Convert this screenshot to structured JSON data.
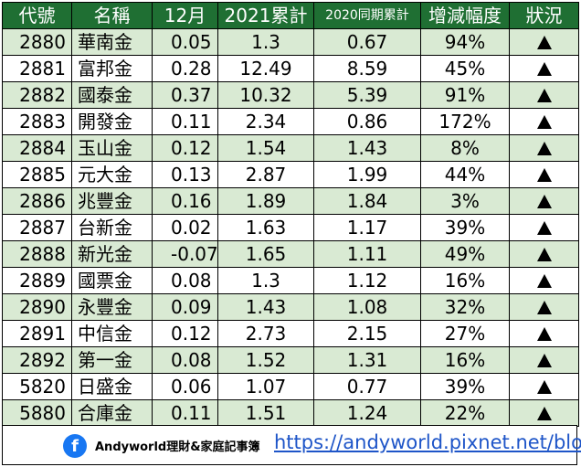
{
  "headers": {
    "code": "代號",
    "name": "名稱",
    "month": "12月",
    "ytd2021": "2021累計",
    "ytd2020": "2020同期累計",
    "change": "增減幅度",
    "status": "狀況"
  },
  "rows": [
    {
      "code": "2880",
      "name": "華南金",
      "month": "0.05",
      "ytd2021": "1.3",
      "ytd2020": "0.67",
      "change": "94%",
      "status": "up"
    },
    {
      "code": "2881",
      "name": "富邦金",
      "month": "0.28",
      "ytd2021": "12.49",
      "ytd2020": "8.59",
      "change": "45%",
      "status": "up"
    },
    {
      "code": "2882",
      "name": "國泰金",
      "month": "0.37",
      "ytd2021": "10.32",
      "ytd2020": "5.39",
      "change": "91%",
      "status": "up"
    },
    {
      "code": "2883",
      "name": "開發金",
      "month": "0.11",
      "ytd2021": "2.34",
      "ytd2020": "0.86",
      "change": "172%",
      "status": "up"
    },
    {
      "code": "2884",
      "name": "玉山金",
      "month": "0.12",
      "ytd2021": "1.54",
      "ytd2020": "1.43",
      "change": "8%",
      "status": "up"
    },
    {
      "code": "2885",
      "name": "元大金",
      "month": "0.13",
      "ytd2021": "2.87",
      "ytd2020": "1.99",
      "change": "44%",
      "status": "up"
    },
    {
      "code": "2886",
      "name": "兆豐金",
      "month": "0.16",
      "ytd2021": "1.89",
      "ytd2020": "1.84",
      "change": "3%",
      "status": "up"
    },
    {
      "code": "2887",
      "name": "台新金",
      "month": "0.02",
      "ytd2021": "1.63",
      "ytd2020": "1.17",
      "change": "39%",
      "status": "up"
    },
    {
      "code": "2888",
      "name": "新光金",
      "month": "-0.07",
      "ytd2021": "1.65",
      "ytd2020": "1.11",
      "change": "49%",
      "status": "up"
    },
    {
      "code": "2889",
      "name": "國票金",
      "month": "0.08",
      "ytd2021": "1.3",
      "ytd2020": "1.12",
      "change": "16%",
      "status": "up"
    },
    {
      "code": "2890",
      "name": "永豐金",
      "month": "0.09",
      "ytd2021": "1.43",
      "ytd2020": "1.08",
      "change": "32%",
      "status": "up"
    },
    {
      "code": "2891",
      "name": "中信金",
      "month": "0.12",
      "ytd2021": "2.73",
      "ytd2020": "2.15",
      "change": "27%",
      "status": "up"
    },
    {
      "code": "2892",
      "name": "第一金",
      "month": "0.08",
      "ytd2021": "1.52",
      "ytd2020": "1.31",
      "change": "16%",
      "status": "up"
    },
    {
      "code": "5820",
      "name": "日盛金",
      "month": "0.06",
      "ytd2021": "1.07",
      "ytd2020": "0.77",
      "change": "39%",
      "status": "up"
    },
    {
      "code": "5880",
      "name": "合庫金",
      "month": "0.11",
      "ytd2021": "1.51",
      "ytd2020": "1.24",
      "change": "22%",
      "status": "up"
    }
  ],
  "footer": {
    "logo_letter": "f",
    "logo_icon": "facebook-icon",
    "brand": "Andyworld理財&家庭記事簿",
    "url": "https://andyworld.pixnet.net/blog"
  },
  "colors": {
    "header_bg": "#1f6f33",
    "stripe_bg": "#d9ead3",
    "link": "#1e55c8",
    "facebook": "#1877f2"
  }
}
